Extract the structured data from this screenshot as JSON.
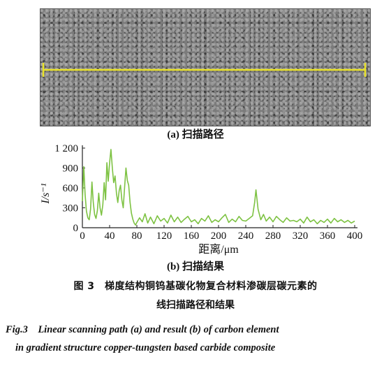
{
  "top_fragment": "",
  "figure": {
    "caption_a": "(a) 扫描路径",
    "caption_b": "(b) 扫描结果",
    "caption_cn_line1": "图 3　梯度结构铜钨基碳化物复合材料渗碳层碳元素的",
    "caption_cn_line2": "线扫描路径和结果",
    "caption_en_line1": "Fig.3　Linear scanning path (a) and result (b) of carbon element",
    "caption_en_line2": "in gradient structure copper-tungsten based carbide composite",
    "scan_line_color": "#e9e22a",
    "micrograph_icon": "sem-micrograph-image"
  },
  "chart_data": {
    "type": "line",
    "title": "",
    "xlabel": "距离/μm",
    "ylabel": "I/s⁻¹",
    "xlim": [
      0,
      400
    ],
    "ylim": [
      0,
      1200
    ],
    "xticks": [
      0,
      40,
      80,
      120,
      160,
      200,
      240,
      280,
      320,
      360,
      400
    ],
    "yticks": [
      0,
      300,
      600,
      900,
      1200
    ],
    "ytick_labels": [
      "0",
      "300",
      "600",
      "900",
      "1 200"
    ],
    "line_color": "#7dc242",
    "grid": false,
    "series": [
      {
        "x": [
          0,
          2,
          4,
          6,
          8,
          10,
          12,
          14,
          16,
          18,
          20,
          22,
          24,
          26,
          28,
          30,
          32,
          34,
          36,
          38,
          40,
          42,
          44,
          46,
          48,
          50,
          52,
          54,
          56,
          58,
          60,
          62,
          64,
          66,
          68,
          70,
          72,
          74,
          76,
          78,
          80,
          84,
          88,
          92,
          96,
          100,
          105,
          110,
          115,
          120,
          125,
          130,
          135,
          140,
          145,
          150,
          155,
          160,
          165,
          170,
          175,
          180,
          185,
          190,
          195,
          200,
          205,
          210,
          215,
          220,
          225,
          230,
          235,
          240,
          245,
          250,
          253,
          255,
          258,
          262,
          266,
          270,
          275,
          280,
          285,
          290,
          295,
          300,
          305,
          310,
          315,
          320,
          325,
          330,
          335,
          340,
          345,
          350,
          355,
          360,
          365,
          370,
          375,
          380,
          385,
          390,
          395,
          400
        ],
        "y": [
          400,
          920,
          500,
          250,
          150,
          120,
          280,
          690,
          380,
          200,
          140,
          260,
          520,
          300,
          190,
          350,
          680,
          420,
          980,
          700,
          980,
          1180,
          900,
          680,
          780,
          520,
          380,
          560,
          640,
          420,
          300,
          600,
          900,
          710,
          640,
          380,
          220,
          130,
          70,
          40,
          80,
          150,
          90,
          210,
          70,
          160,
          60,
          180,
          100,
          140,
          70,
          190,
          90,
          160,
          80,
          130,
          170,
          90,
          120,
          60,
          140,
          100,
          180,
          80,
          120,
          90,
          150,
          200,
          80,
          130,
          90,
          170,
          110,
          100,
          140,
          180,
          380,
          570,
          280,
          120,
          200,
          100,
          160,
          90,
          170,
          120,
          80,
          150,
          100,
          110,
          90,
          130,
          70,
          160,
          90,
          120,
          60,
          110,
          80,
          130,
          70,
          140,
          90,
          120,
          80,
          110,
          70,
          100
        ]
      }
    ]
  }
}
